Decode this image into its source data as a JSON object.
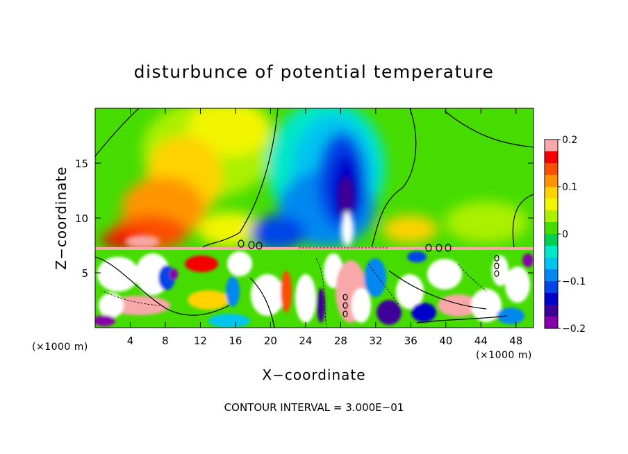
{
  "chart_data": {
    "type": "heatmap",
    "title": "disturbunce of potential temperature",
    "xlabel": "X−coordinate",
    "ylabel": "Z−coordinate",
    "x_unit": "(×1000 m)",
    "x_unit_right": "(×1000 m)",
    "xlim": [
      0,
      50
    ],
    "ylim": [
      0,
      20
    ],
    "x_ticks": [
      4,
      8,
      12,
      16,
      20,
      24,
      28,
      32,
      36,
      40,
      44,
      48
    ],
    "x_tick_labels": [
      "4",
      "8",
      "12",
      "16",
      "20",
      "24",
      "28",
      "32",
      "36",
      "40",
      "44",
      "48"
    ],
    "y_ticks": [
      5,
      10,
      15
    ],
    "y_tick_labels": [
      "5",
      "10",
      "15"
    ],
    "colorbar": {
      "range": [
        -0.2,
        0.2
      ],
      "ticks": [
        0.2,
        0.1,
        0,
        -0.1,
        -0.2
      ],
      "tick_labels": [
        "0.2",
        "0.1",
        "0",
        "−0.1",
        "−0.2"
      ],
      "colors": [
        "#f8a8a8",
        "#f40000",
        "#fa5000",
        "#ff9400",
        "#ffd200",
        "#f2f500",
        "#aaf000",
        "#46dc00",
        "#00d050",
        "#00e8c8",
        "#00c4f0",
        "#0088f0",
        "#0044e8",
        "#0000cc",
        "#3c0098",
        "#8800aa"
      ]
    },
    "footnote": "CONTOUR INTERVAL = 3.000E−01",
    "grid": false
  }
}
